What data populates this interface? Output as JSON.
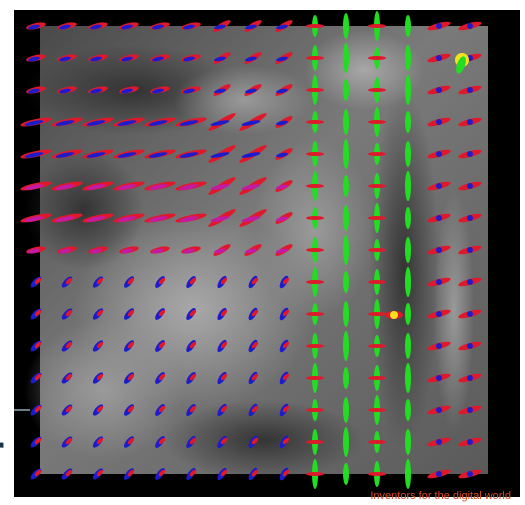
{
  "visualization": {
    "kind": "diffusion tensor glyph field over grayscale MRI slice",
    "grid_columns": 15,
    "grid_rows": 15,
    "background_color": "#000000",
    "glyph_colors": {
      "left_right": "#e0192a",
      "anterior_posterior": "#22dd22",
      "superior_inferior": "#1c1ccc",
      "mixed": "#c21aa8",
      "highlight": "#f2e21a"
    }
  },
  "branding": {
    "logo_fragment": "r",
    "tagline": "Inventors for the digital world",
    "tagline_color": "#d9481f",
    "logo_color": "#17354a"
  }
}
